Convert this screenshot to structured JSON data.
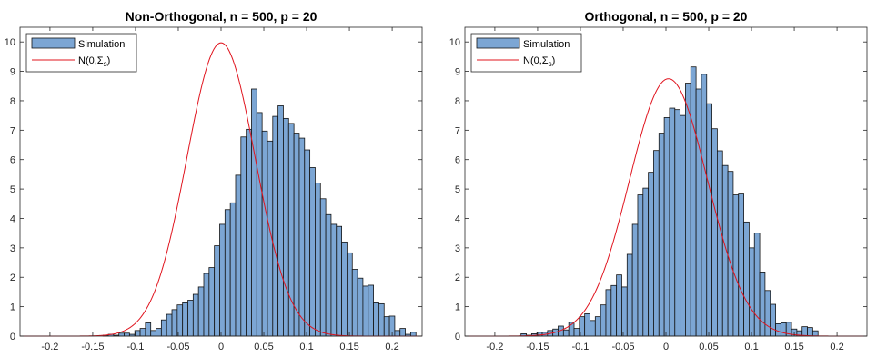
{
  "chart_data": [
    {
      "type": "bar",
      "title": "Non-Orthogonal, n = 500, p = 20",
      "xlim": [
        -0.235,
        0.235
      ],
      "ylim": [
        0,
        10.5
      ],
      "xticks": [
        "-0.2",
        "-0.15",
        "-0.1",
        "-0.05",
        "0",
        "0.05",
        "0.1",
        "0.15",
        "0.2"
      ],
      "yticks": [
        "0",
        "1",
        "2",
        "3",
        "4",
        "5",
        "6",
        "7",
        "8",
        "9",
        "10"
      ],
      "legend_position": "top-left",
      "bin_width": 0.0062,
      "series": [
        {
          "name": "Simulation",
          "bin_centers": [
            -0.1349,
            -0.1287,
            -0.1225,
            -0.1163,
            -0.1101,
            -0.1039,
            -0.0977,
            -0.0915,
            -0.0853,
            -0.0791,
            -0.0729,
            -0.0667,
            -0.0605,
            -0.0543,
            -0.0481,
            -0.0419,
            -0.0357,
            -0.0295,
            -0.0233,
            -0.0171,
            -0.0109,
            -0.0047,
            0.0015,
            0.0077,
            0.0139,
            0.0201,
            0.0263,
            0.0325,
            0.0387,
            0.0449,
            0.0511,
            0.0573,
            0.0635,
            0.0697,
            0.0759,
            0.0821,
            0.0883,
            0.0945,
            0.1007,
            0.1069,
            0.1131,
            0.1193,
            0.1255,
            0.1317,
            0.1379,
            0.1441,
            0.1503,
            0.1565,
            0.1627,
            0.1689,
            0.1751,
            0.1813,
            0.1875,
            0.1937,
            0.1999,
            0.2061,
            0.2123,
            0.2185,
            0.2247
          ],
          "values": [
            0.03,
            0.06,
            0.03,
            0.1,
            0.1,
            0.06,
            0.19,
            0.26,
            0.45,
            0.19,
            0.26,
            0.55,
            0.74,
            0.9,
            1.06,
            1.13,
            1.22,
            1.42,
            1.67,
            2.13,
            2.33,
            3.07,
            3.8,
            4.3,
            4.53,
            5.47,
            6.77,
            7.03,
            8.4,
            7.6,
            6.97,
            6.63,
            7.47,
            7.83,
            7.4,
            7.23,
            6.9,
            6.73,
            6.33,
            5.73,
            5.2,
            4.67,
            4.13,
            3.8,
            3.73,
            3.2,
            2.83,
            2.27,
            1.97,
            1.7,
            1.73,
            1.13,
            1.1,
            0.66,
            0.68,
            0.19,
            0.26,
            0.06,
            0.13
          ]
        },
        {
          "name": "N(0,Σs)",
          "density": "normal",
          "mean": 0,
          "peak": 9.97
        }
      ]
    },
    {
      "type": "bar",
      "title": "Orthogonal, n = 500, p = 20",
      "xlim": [
        -0.235,
        0.235
      ],
      "ylim": [
        0,
        10.5
      ],
      "xticks": [
        "-0.2",
        "-0.15",
        "-0.1",
        "-0.05",
        "0",
        "0.05",
        "0.1",
        "0.15",
        "0.2"
      ],
      "yticks": [
        "0",
        "1",
        "2",
        "3",
        "4",
        "5",
        "6",
        "7",
        "8",
        "9",
        "10"
      ],
      "legend_position": "top-left",
      "bin_width": 0.0062,
      "series": [
        {
          "name": "Simulation",
          "bin_centers": [
            -0.1663,
            -0.1601,
            -0.1539,
            -0.1477,
            -0.1415,
            -0.1353,
            -0.1291,
            -0.1229,
            -0.1167,
            -0.1105,
            -0.1043,
            -0.0981,
            -0.0919,
            -0.0857,
            -0.0795,
            -0.0733,
            -0.0671,
            -0.0609,
            -0.0547,
            -0.0485,
            -0.0423,
            -0.0361,
            -0.0299,
            -0.0237,
            -0.0175,
            -0.0113,
            -0.0051,
            0.0011,
            0.0073,
            0.0135,
            0.0197,
            0.0259,
            0.0321,
            0.0383,
            0.0445,
            0.0507,
            0.0569,
            0.0631,
            0.0693,
            0.0755,
            0.0817,
            0.0879,
            0.0941,
            0.1003,
            0.1065,
            0.1127,
            0.1189,
            0.1251,
            0.1313,
            0.1375,
            0.1437,
            0.1499,
            0.1561,
            0.1623,
            0.1685,
            0.1747
          ],
          "values": [
            0.08,
            0.03,
            0.08,
            0.13,
            0.13,
            0.19,
            0.24,
            0.34,
            0.21,
            0.47,
            0.26,
            0.66,
            0.76,
            0.53,
            0.66,
            1.06,
            1.58,
            1.72,
            2.08,
            1.67,
            2.78,
            3.8,
            4.8,
            5.03,
            5.57,
            6.31,
            6.9,
            7.43,
            7.75,
            7.7,
            7.5,
            8.6,
            9.15,
            8.4,
            8.9,
            7.9,
            7.05,
            6.3,
            5.8,
            5.6,
            4.8,
            4.83,
            3.88,
            3.0,
            3.5,
            2.18,
            1.55,
            1.08,
            0.42,
            0.45,
            0.47,
            0.24,
            0.18,
            0.32,
            0.29,
            0.18
          ]
        },
        {
          "name": "N(0,Σs)",
          "density": "normal",
          "mean": 0.003,
          "peak": 8.75
        }
      ]
    }
  ]
}
